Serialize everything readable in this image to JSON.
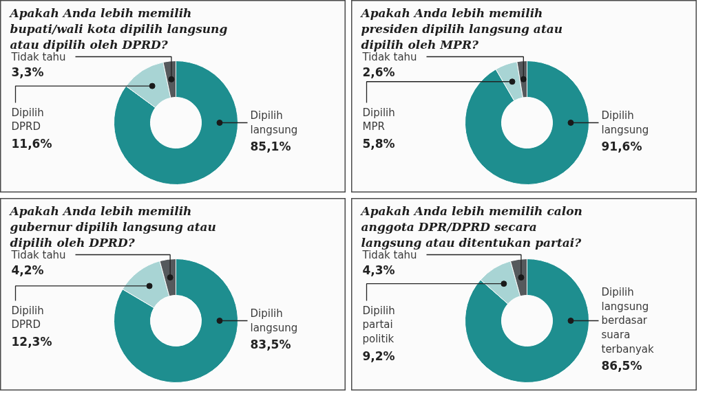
{
  "chart_data": [
    {
      "type": "donut",
      "title": "Apakah Anda lebih memilih\nbupati/wali kota dipilih langsung\natau dipilih oleh DPRD?",
      "categories": [
        "Dipilih\nlangsung",
        "Dipilih\nDPRD",
        "Tidak tahu"
      ],
      "values": [
        85.1,
        11.6,
        3.3
      ],
      "value_labels": [
        "85,1%",
        "11,6%",
        "3,3%"
      ],
      "colors": [
        "#1e8e8f",
        "#a8d4d4",
        "#55595c"
      ]
    },
    {
      "type": "donut",
      "title": "Apakah Anda lebih memilih\npresiden dipilih langsung atau\ndipilih oleh MPR?",
      "categories": [
        "Dipilih\nlangsung",
        "Dipilih\nMPR",
        "Tidak tahu"
      ],
      "values": [
        91.6,
        5.8,
        2.6
      ],
      "value_labels": [
        "91,6%",
        "5,8%",
        "2,6%"
      ],
      "colors": [
        "#1e8e8f",
        "#a8d4d4",
        "#55595c"
      ]
    },
    {
      "type": "donut",
      "title": "Apakah Anda lebih memilih\ngubernur dipilih langsung atau\ndipilih oleh DPRD?",
      "categories": [
        "Dipilih\nlangsung",
        "Dipilih\nDPRD",
        "Tidak tahu"
      ],
      "values": [
        83.5,
        12.3,
        4.2
      ],
      "value_labels": [
        "83,5%",
        "12,3%",
        "4,2%"
      ],
      "colors": [
        "#1e8e8f",
        "#a8d4d4",
        "#55595c"
      ]
    },
    {
      "type": "donut",
      "title": "Apakah Anda lebih memilih calon\nanggota DPR/DPRD secara\nlangsung atau ditentukan partai?",
      "categories": [
        "Dipilih\nlangsung\nberdasar\nsuara\nterbanyak",
        "Dipilih\npartai\npolitik",
        "Tidak tahu"
      ],
      "values": [
        86.5,
        9.2,
        4.3
      ],
      "value_labels": [
        "86,5%",
        "9,2%",
        "4,3%"
      ],
      "colors": [
        "#1e8e8f",
        "#a8d4d4",
        "#55595c"
      ]
    }
  ]
}
